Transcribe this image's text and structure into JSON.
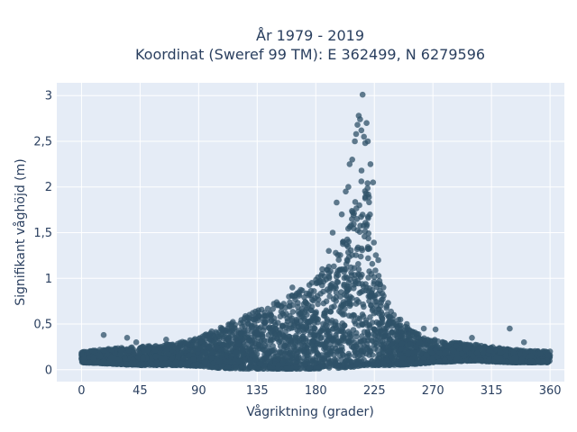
{
  "chart_data": {
    "type": "scatter",
    "title_line1": "År 1979 - 2019",
    "title_line2": "Koordinat (Sweref 99 TM): E 362499, N 6279596",
    "xlabel": "Vågriktning (grader)",
    "ylabel": "Signifikant våghöjd (m)",
    "xlim": [
      -19,
      371
    ],
    "ylim": [
      -0.13,
      3.14
    ],
    "xticks": [
      0,
      45,
      90,
      135,
      180,
      225,
      270,
      315,
      360
    ],
    "xtick_labels": [
      "0",
      "45",
      "90",
      "135",
      "180",
      "225",
      "270",
      "315",
      "360"
    ],
    "yticks": [
      0,
      0.5,
      1,
      1.5,
      2,
      2.5,
      3
    ],
    "ytick_labels": [
      "0",
      "0,5",
      "1",
      "1,5",
      "2",
      "2,5",
      "3"
    ],
    "grid": true,
    "colors": {
      "point": "#2f5168",
      "plot_bg": "#e5ecf6",
      "grid": "#ffffff",
      "text": "#2a3f5f"
    },
    "envelope": {
      "x": [
        0,
        15,
        30,
        45,
        60,
        75,
        90,
        105,
        120,
        135,
        150,
        165,
        180,
        190,
        200,
        205,
        210,
        215,
        220,
        225,
        230,
        240,
        255,
        270,
        300,
        330,
        360
      ],
      "upper": [
        0.2,
        0.22,
        0.24,
        0.25,
        0.27,
        0.3,
        0.35,
        0.45,
        0.55,
        0.68,
        0.75,
        0.85,
        1.0,
        1.15,
        1.4,
        1.6,
        1.9,
        2.2,
        2.1,
        1.5,
        0.9,
        0.6,
        0.42,
        0.33,
        0.28,
        0.22,
        0.2
      ],
      "lower": [
        0.08,
        0.07,
        0.06,
        0.05,
        0.05,
        0.05,
        0.04,
        0.02,
        0.01,
        0.01,
        0.01,
        0.01,
        0.01,
        0.02,
        0.02,
        0.03,
        0.03,
        0.05,
        0.05,
        0.05,
        0.05,
        0.05,
        0.06,
        0.08,
        0.1,
        0.08,
        0.08
      ]
    },
    "outliers": [
      {
        "x": 17,
        "y": 0.38
      },
      {
        "x": 35,
        "y": 0.35
      },
      {
        "x": 42,
        "y": 0.3
      },
      {
        "x": 65,
        "y": 0.33
      },
      {
        "x": 100,
        "y": 0.42
      },
      {
        "x": 108,
        "y": 0.45
      },
      {
        "x": 162,
        "y": 0.9
      },
      {
        "x": 177,
        "y": 0.95
      },
      {
        "x": 185,
        "y": 1.1
      },
      {
        "x": 190,
        "y": 1.3
      },
      {
        "x": 193,
        "y": 1.5
      },
      {
        "x": 196,
        "y": 1.83
      },
      {
        "x": 200,
        "y": 1.7
      },
      {
        "x": 203,
        "y": 1.95
      },
      {
        "x": 205,
        "y": 2.0
      },
      {
        "x": 206,
        "y": 2.25
      },
      {
        "x": 208,
        "y": 2.3
      },
      {
        "x": 210,
        "y": 2.5
      },
      {
        "x": 211,
        "y": 2.58
      },
      {
        "x": 212,
        "y": 2.68
      },
      {
        "x": 213,
        "y": 2.78
      },
      {
        "x": 214,
        "y": 2.74
      },
      {
        "x": 215,
        "y": 2.62
      },
      {
        "x": 216,
        "y": 3.01
      },
      {
        "x": 217,
        "y": 2.55
      },
      {
        "x": 218,
        "y": 2.48
      },
      {
        "x": 219,
        "y": 2.7
      },
      {
        "x": 220,
        "y": 2.5
      },
      {
        "x": 222,
        "y": 2.25
      },
      {
        "x": 224,
        "y": 2.05
      },
      {
        "x": 228,
        "y": 1.2
      },
      {
        "x": 232,
        "y": 0.9
      },
      {
        "x": 240,
        "y": 0.6
      },
      {
        "x": 245,
        "y": 0.55
      },
      {
        "x": 250,
        "y": 0.5
      },
      {
        "x": 263,
        "y": 0.45
      },
      {
        "x": 272,
        "y": 0.44
      },
      {
        "x": 300,
        "y": 0.35
      },
      {
        "x": 329,
        "y": 0.45
      },
      {
        "x": 340,
        "y": 0.3
      }
    ]
  }
}
